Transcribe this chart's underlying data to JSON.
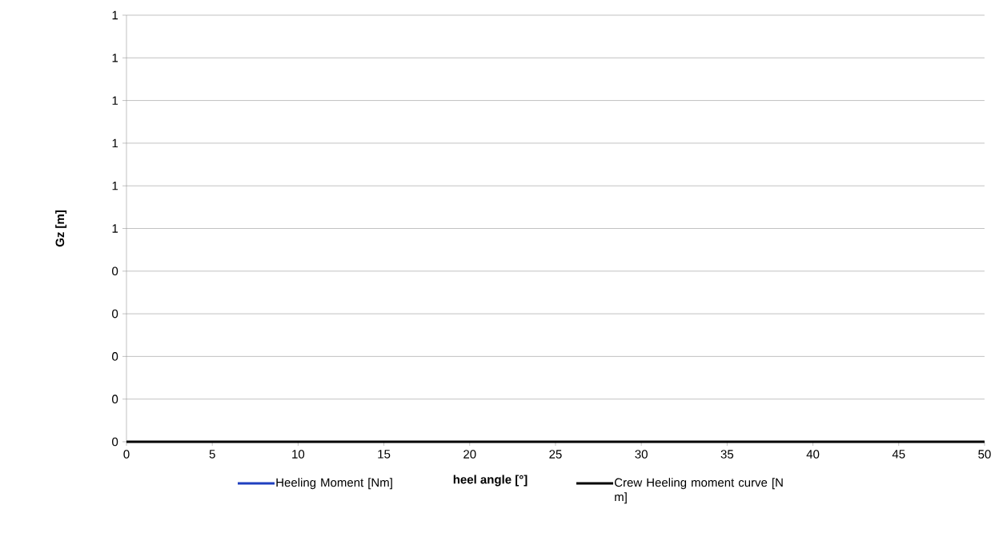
{
  "chart_data": {
    "type": "line",
    "xlabel": "heel angle [°]",
    "ylabel": "Gz [m]",
    "xlim": [
      0,
      50
    ],
    "xticks": [
      0,
      5,
      10,
      15,
      20,
      25,
      30,
      35,
      40,
      45,
      50
    ],
    "ylim": [
      0,
      1
    ],
    "yticks": [
      {
        "value": 0,
        "label": "0"
      },
      {
        "value": 0.1,
        "label": "0"
      },
      {
        "value": 0.2,
        "label": "0"
      },
      {
        "value": 0.3,
        "label": "0"
      },
      {
        "value": 0.4,
        "label": "0"
      },
      {
        "value": 0.5,
        "label": "1"
      },
      {
        "value": 0.6,
        "label": "1"
      },
      {
        "value": 0.7,
        "label": "1"
      },
      {
        "value": 0.8,
        "label": "1"
      },
      {
        "value": 0.9,
        "label": "1"
      },
      {
        "value": 1,
        "label": "1"
      }
    ],
    "grid": "y",
    "legend": "bottom",
    "marker": "none",
    "line_style": "solid",
    "x": [
      0,
      50
    ],
    "series": [
      {
        "name": "Heeling Moment [Nm]",
        "color": "#1f3fbf",
        "values": [
          null,
          null
        ]
      },
      {
        "name": "Crew Heeling moment curve [N m]",
        "color": "#000000",
        "values": [
          0,
          0
        ]
      }
    ]
  }
}
